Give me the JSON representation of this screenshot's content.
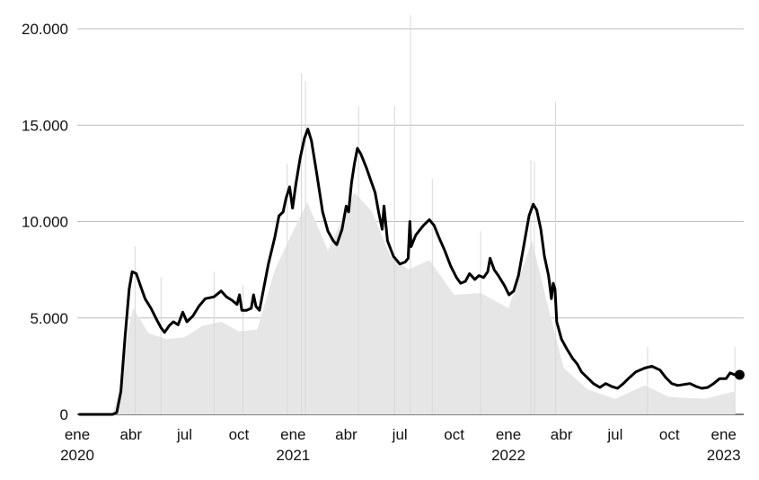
{
  "chart_data": {
    "type": "area",
    "title": "",
    "xlabel": "",
    "ylabel": "",
    "ylim": [
      0,
      20000
    ],
    "xlim": [
      "2020-01-01",
      "2023-02-04"
    ],
    "grid": true,
    "y_ticks": [
      {
        "value": 0,
        "label": "0"
      },
      {
        "value": 5000,
        "label": "5.000"
      },
      {
        "value": 10000,
        "label": "10.000"
      },
      {
        "value": 15000,
        "label": "15.000"
      },
      {
        "value": 20000,
        "label": "20.000"
      }
    ],
    "x_ticks": [
      {
        "date": "2020-01-01",
        "label": "ene",
        "year": "2020"
      },
      {
        "date": "2020-04-01",
        "label": "abr",
        "year": ""
      },
      {
        "date": "2020-07-01",
        "label": "jul",
        "year": ""
      },
      {
        "date": "2020-10-01",
        "label": "oct",
        "year": ""
      },
      {
        "date": "2021-01-01",
        "label": "ene",
        "year": "2021"
      },
      {
        "date": "2021-04-01",
        "label": "abr",
        "year": ""
      },
      {
        "date": "2021-07-01",
        "label": "jul",
        "year": ""
      },
      {
        "date": "2021-10-01",
        "label": "oct",
        "year": ""
      },
      {
        "date": "2022-01-01",
        "label": "ene",
        "year": "2022"
      },
      {
        "date": "2022-04-01",
        "label": "abr",
        "year": ""
      },
      {
        "date": "2022-07-01",
        "label": "jul",
        "year": ""
      },
      {
        "date": "2022-10-01",
        "label": "oct",
        "year": ""
      },
      {
        "date": "2023-01-01",
        "label": "ene",
        "year": "2023"
      }
    ],
    "series": [
      {
        "name": "",
        "kind": "moving-average-line",
        "color": "#000000",
        "points": [
          [
            "2020-01-05",
            0
          ],
          [
            "2020-02-10",
            0
          ],
          [
            "2020-03-01",
            0
          ],
          [
            "2020-03-08",
            100
          ],
          [
            "2020-03-15",
            1200
          ],
          [
            "2020-03-22",
            4000
          ],
          [
            "2020-03-29",
            6500
          ],
          [
            "2020-04-03",
            7400
          ],
          [
            "2020-04-10",
            7300
          ],
          [
            "2020-04-18",
            6600
          ],
          [
            "2020-04-25",
            6000
          ],
          [
            "2020-05-05",
            5500
          ],
          [
            "2020-05-15",
            4900
          ],
          [
            "2020-05-22",
            4500
          ],
          [
            "2020-05-28",
            4250
          ],
          [
            "2020-06-05",
            4600
          ],
          [
            "2020-06-12",
            4800
          ],
          [
            "2020-06-20",
            4650
          ],
          [
            "2020-06-28",
            5300
          ],
          [
            "2020-07-05",
            4800
          ],
          [
            "2020-07-15",
            5100
          ],
          [
            "2020-07-25",
            5600
          ],
          [
            "2020-08-05",
            6000
          ],
          [
            "2020-08-20",
            6100
          ],
          [
            "2020-09-01",
            6400
          ],
          [
            "2020-09-10",
            6100
          ],
          [
            "2020-09-20",
            5900
          ],
          [
            "2020-09-28",
            5700
          ],
          [
            "2020-10-02",
            6200
          ],
          [
            "2020-10-06",
            5400
          ],
          [
            "2020-10-14",
            5400
          ],
          [
            "2020-10-22",
            5500
          ],
          [
            "2020-10-26",
            6200
          ],
          [
            "2020-10-30",
            5600
          ],
          [
            "2020-11-05",
            5400
          ],
          [
            "2020-11-10",
            6200
          ],
          [
            "2020-11-20",
            7800
          ],
          [
            "2020-12-01",
            9200
          ],
          [
            "2020-12-08",
            10300
          ],
          [
            "2020-12-15",
            10500
          ],
          [
            "2020-12-20",
            11200
          ],
          [
            "2020-12-26",
            11800
          ],
          [
            "2020-12-31",
            10700
          ],
          [
            "2021-01-06",
            12000
          ],
          [
            "2021-01-13",
            13300
          ],
          [
            "2021-01-20",
            14300
          ],
          [
            "2021-01-26",
            14800
          ],
          [
            "2021-02-01",
            14200
          ],
          [
            "2021-02-10",
            12500
          ],
          [
            "2021-02-20",
            10500
          ],
          [
            "2021-03-01",
            9500
          ],
          [
            "2021-03-10",
            9000
          ],
          [
            "2021-03-16",
            8800
          ],
          [
            "2021-03-25",
            9600
          ],
          [
            "2021-04-01",
            10800
          ],
          [
            "2021-04-05",
            10500
          ],
          [
            "2021-04-10",
            12000
          ],
          [
            "2021-04-15",
            13000
          ],
          [
            "2021-04-20",
            13800
          ],
          [
            "2021-04-26",
            13500
          ],
          [
            "2021-05-05",
            12800
          ],
          [
            "2021-05-12",
            12200
          ],
          [
            "2021-05-20",
            11500
          ],
          [
            "2021-05-26",
            10500
          ],
          [
            "2021-06-01",
            9600
          ],
          [
            "2021-06-04",
            10800
          ],
          [
            "2021-06-10",
            9000
          ],
          [
            "2021-06-20",
            8200
          ],
          [
            "2021-07-01",
            7800
          ],
          [
            "2021-07-10",
            7900
          ],
          [
            "2021-07-15",
            8100
          ],
          [
            "2021-07-18",
            10000
          ],
          [
            "2021-07-20",
            8700
          ],
          [
            "2021-07-28",
            9300
          ],
          [
            "2021-08-10",
            9800
          ],
          [
            "2021-08-20",
            10100
          ],
          [
            "2021-08-28",
            9800
          ],
          [
            "2021-09-05",
            9200
          ],
          [
            "2021-09-15",
            8500
          ],
          [
            "2021-09-25",
            7700
          ],
          [
            "2021-10-05",
            7100
          ],
          [
            "2021-10-12",
            6800
          ],
          [
            "2021-10-20",
            6900
          ],
          [
            "2021-10-27",
            7300
          ],
          [
            "2021-11-05",
            7000
          ],
          [
            "2021-11-12",
            7200
          ],
          [
            "2021-11-20",
            7100
          ],
          [
            "2021-11-27",
            7400
          ],
          [
            "2021-12-01",
            8100
          ],
          [
            "2021-12-08",
            7500
          ],
          [
            "2021-12-15",
            7200
          ],
          [
            "2021-12-25",
            6700
          ],
          [
            "2022-01-02",
            6200
          ],
          [
            "2022-01-10",
            6400
          ],
          [
            "2022-01-18",
            7200
          ],
          [
            "2022-01-28",
            8900
          ],
          [
            "2022-02-05",
            10300
          ],
          [
            "2022-02-12",
            10900
          ],
          [
            "2022-02-18",
            10600
          ],
          [
            "2022-02-25",
            9600
          ],
          [
            "2022-03-03",
            8200
          ],
          [
            "2022-03-10",
            7200
          ],
          [
            "2022-03-15",
            6000
          ],
          [
            "2022-03-18",
            6800
          ],
          [
            "2022-03-21",
            6500
          ],
          [
            "2022-03-24",
            4800
          ],
          [
            "2022-04-01",
            3900
          ],
          [
            "2022-04-10",
            3400
          ],
          [
            "2022-04-20",
            2900
          ],
          [
            "2022-04-28",
            2600
          ],
          [
            "2022-05-05",
            2200
          ],
          [
            "2022-05-15",
            1900
          ],
          [
            "2022-05-25",
            1600
          ],
          [
            "2022-06-05",
            1400
          ],
          [
            "2022-06-15",
            1600
          ],
          [
            "2022-06-25",
            1450
          ],
          [
            "2022-07-05",
            1350
          ],
          [
            "2022-07-15",
            1600
          ],
          [
            "2022-07-25",
            1900
          ],
          [
            "2022-08-05",
            2200
          ],
          [
            "2022-08-20",
            2400
          ],
          [
            "2022-09-01",
            2500
          ],
          [
            "2022-09-15",
            2300
          ],
          [
            "2022-09-25",
            1900
          ],
          [
            "2022-10-05",
            1600
          ],
          [
            "2022-10-15",
            1500
          ],
          [
            "2022-10-25",
            1550
          ],
          [
            "2022-11-05",
            1600
          ],
          [
            "2022-11-15",
            1450
          ],
          [
            "2022-11-25",
            1350
          ],
          [
            "2022-12-05",
            1400
          ],
          [
            "2022-12-15",
            1600
          ],
          [
            "2022-12-25",
            1850
          ],
          [
            "2023-01-05",
            1850
          ],
          [
            "2023-01-12",
            2150
          ],
          [
            "2023-01-20",
            2050
          ],
          [
            "2023-01-28",
            2050
          ]
        ]
      },
      {
        "name": "",
        "kind": "daily-bars",
        "color": "#e6e6e6",
        "points": [
          [
            "2020-03-01",
            0
          ],
          [
            "2020-03-15",
            1500
          ],
          [
            "2020-03-28",
            4500
          ],
          [
            "2020-04-05",
            5500
          ],
          [
            "2020-05-01",
            4200
          ],
          [
            "2020-06-01",
            3900
          ],
          [
            "2020-07-01",
            4000
          ],
          [
            "2020-08-01",
            4600
          ],
          [
            "2020-09-01",
            4800
          ],
          [
            "2020-10-01",
            4300
          ],
          [
            "2020-11-01",
            4400
          ],
          [
            "2020-12-01",
            7500
          ],
          [
            "2021-01-01",
            9500
          ],
          [
            "2021-01-25",
            11000
          ],
          [
            "2021-03-01",
            8500
          ],
          [
            "2021-04-15",
            11500
          ],
          [
            "2021-05-15",
            10500
          ],
          [
            "2021-06-15",
            8200
          ],
          [
            "2021-07-15",
            7500
          ],
          [
            "2021-08-20",
            8000
          ],
          [
            "2021-10-01",
            6200
          ],
          [
            "2021-11-15",
            6300
          ],
          [
            "2022-01-01",
            5500
          ],
          [
            "2022-02-10",
            9000
          ],
          [
            "2022-03-10",
            5500
          ],
          [
            "2022-04-05",
            2400
          ],
          [
            "2022-05-15",
            1300
          ],
          [
            "2022-07-01",
            800
          ],
          [
            "2022-08-20",
            1500
          ],
          [
            "2022-10-01",
            900
          ],
          [
            "2022-12-01",
            800
          ],
          [
            "2023-01-20",
            1200
          ]
        ],
        "spikes": [
          [
            "2020-04-08",
            8700
          ],
          [
            "2020-05-22",
            7100
          ],
          [
            "2020-08-20",
            7400
          ],
          [
            "2020-10-08",
            6700
          ],
          [
            "2020-12-22",
            13000
          ],
          [
            "2021-01-15",
            17700
          ],
          [
            "2021-01-22",
            17300
          ],
          [
            "2021-04-22",
            16000
          ],
          [
            "2021-06-22",
            16000
          ],
          [
            "2021-07-19",
            20700
          ],
          [
            "2021-08-25",
            12200
          ],
          [
            "2021-11-15",
            9500
          ],
          [
            "2022-02-08",
            13200
          ],
          [
            "2022-02-14",
            13100
          ],
          [
            "2022-03-22",
            16200
          ],
          [
            "2022-08-25",
            3500
          ],
          [
            "2023-01-20",
            3500
          ]
        ]
      }
    ],
    "end_marker": {
      "date": "2023-01-28",
      "value": 2050
    }
  }
}
